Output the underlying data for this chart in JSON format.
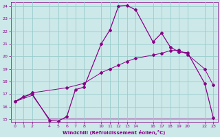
{
  "xlabel": "Windchill (Refroidissement éolien,°C)",
  "bg_color": "#cce8e8",
  "line_color": "#880088",
  "grid_color": "#99cccc",
  "xlim": [
    -0.5,
    23.5
  ],
  "ylim": [
    14.8,
    24.3
  ],
  "x_ticks": [
    0,
    1,
    2,
    4,
    5,
    6,
    7,
    8,
    10,
    11,
    12,
    13,
    14,
    16,
    17,
    18,
    19,
    20,
    22,
    23
  ],
  "y_ticks": [
    15,
    16,
    17,
    18,
    19,
    20,
    21,
    22,
    23,
    24
  ],
  "line1_x": [
    0,
    1,
    2,
    4,
    5,
    6,
    7,
    8,
    10,
    11,
    12,
    13,
    14,
    16,
    17,
    18,
    19,
    20,
    22,
    23
  ],
  "line1_y": [
    16.4,
    16.8,
    17.0,
    14.9,
    14.85,
    15.2,
    17.35,
    17.55,
    21.0,
    22.1,
    24.0,
    24.05,
    23.7,
    21.15,
    21.85,
    20.75,
    20.35,
    20.3,
    17.85,
    15.1
  ],
  "line2_x": [
    0,
    2,
    6,
    8,
    10,
    11,
    12,
    13,
    14,
    16,
    17,
    18,
    19,
    20,
    22,
    23
  ],
  "line2_y": [
    16.4,
    17.1,
    17.5,
    17.85,
    18.7,
    19.0,
    19.3,
    19.6,
    19.85,
    20.1,
    20.25,
    20.45,
    20.5,
    20.15,
    19.0,
    17.7
  ],
  "line3_x": [
    0,
    1,
    2,
    4,
    5,
    6,
    7,
    8,
    10,
    11,
    12,
    13,
    14,
    16,
    17,
    18,
    19,
    20,
    22,
    23
  ],
  "line3_y": [
    16.4,
    16.65,
    16.9,
    15.0,
    15.0,
    15.0,
    15.0,
    15.0,
    15.0,
    15.0,
    15.0,
    15.0,
    15.0,
    15.0,
    15.0,
    15.0,
    15.0,
    15.0,
    15.0,
    15.0
  ]
}
